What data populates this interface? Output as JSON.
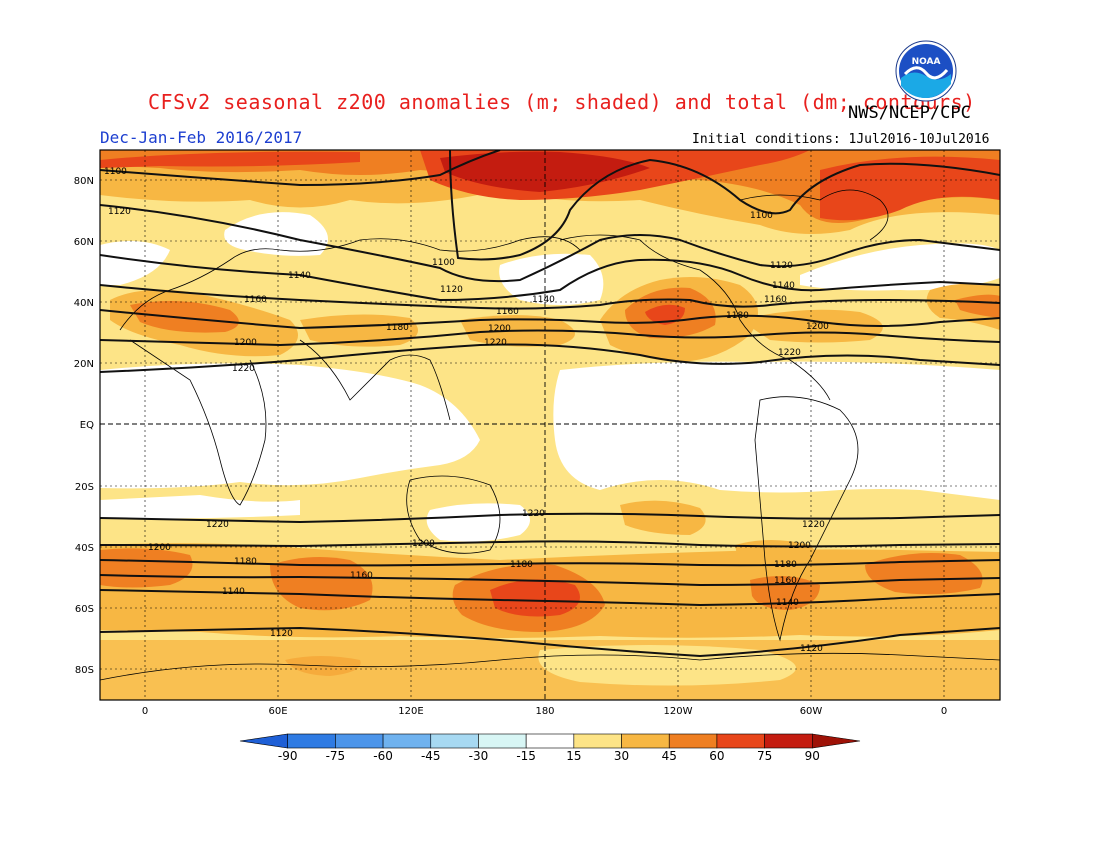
{
  "header": {
    "title": "CFSv2 seasonal z200 anomalies (m; shaded) and total (dm; contours)",
    "agency": "NWS/NCEP/CPC",
    "period": "Dec-Jan-Feb 2016/2017",
    "initial_conditions": "Initial conditions: 1Jul2016-10Jul2016",
    "logo_text": "NOAA"
  },
  "map": {
    "lat_labels": [
      "80N",
      "60N",
      "40N",
      "20N",
      "EQ",
      "20S",
      "40S",
      "60S",
      "80S"
    ],
    "lon_labels": [
      "0",
      "60E",
      "120E",
      "180",
      "120W",
      "60W",
      "0"
    ],
    "contour_labels": [
      "1100",
      "1120",
      "1140",
      "1160",
      "1180",
      "1200",
      "1220"
    ]
  },
  "colorbar": {
    "levels": [
      "-90",
      "-75",
      "-60",
      "-45",
      "-30",
      "-15",
      "15",
      "30",
      "45",
      "60",
      "75",
      "90"
    ],
    "colors": [
      "#1e5fd6",
      "#2f7be3",
      "#4c95ea",
      "#6fb2ef",
      "#a7d9f2",
      "#d8f6f5",
      "#ffffff",
      "#fde487",
      "#f7b743",
      "#ef7f22",
      "#e8461a",
      "#c41c10",
      "#9e1207"
    ]
  }
}
